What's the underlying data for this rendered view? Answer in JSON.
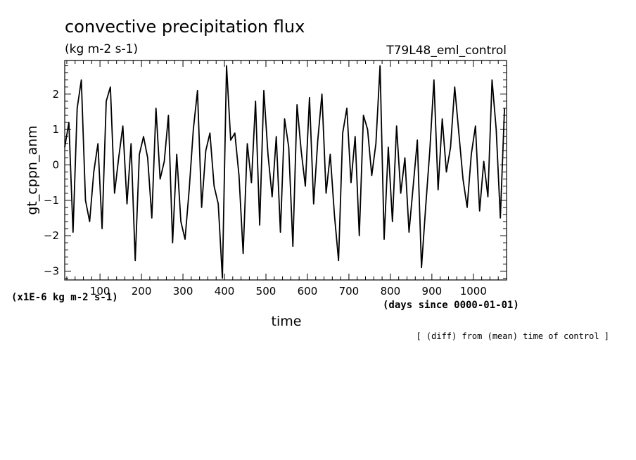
{
  "chart_data": {
    "type": "line",
    "title": "convective precipitation flux",
    "units": "(kg m-2 s-1)",
    "experiment": "T79L48_eml_control",
    "ylabel": "gt_cppn_anm",
    "xlabel": "time",
    "x_units": "(days since 0000-01-01)",
    "y_scale_note": "(x1E-6 kg m-2 s-1)",
    "footnote": "[ (diff) from (mean) time of control ]",
    "xlim": [
      15,
      1080
    ],
    "ylim": [
      -3.25,
      2.95
    ],
    "x_ticks": [
      100,
      200,
      300,
      400,
      500,
      600,
      700,
      800,
      900,
      1000
    ],
    "x_tick_labels": [
      "100",
      "200",
      "300",
      "400",
      "500",
      "600",
      "700",
      "800",
      "900",
      "1000"
    ],
    "y_ticks": [
      -3,
      -2,
      -1,
      0,
      1,
      2
    ],
    "y_tick_labels": [
      "−3",
      "−2",
      "−1",
      "0",
      "1",
      "2"
    ],
    "series": [
      {
        "x": [
          15,
          25,
          35,
          45,
          55,
          65,
          75,
          85,
          95,
          105,
          115,
          125,
          135,
          145,
          155,
          165,
          175,
          185,
          195,
          205,
          215,
          225,
          235,
          245,
          255,
          265,
          275,
          285,
          295,
          305,
          315,
          325,
          335,
          345,
          355,
          365,
          375,
          385,
          395,
          405,
          415,
          425,
          435,
          445,
          455,
          465,
          475,
          485,
          495,
          505,
          515,
          525,
          535,
          545,
          555,
          565,
          575,
          585,
          595,
          605,
          615,
          625,
          635,
          645,
          655,
          665,
          675,
          685,
          695,
          705,
          715,
          725,
          735,
          745,
          755,
          765,
          775,
          785,
          795,
          805,
          815,
          825,
          835,
          845,
          855,
          865,
          875,
          885,
          895,
          905,
          915,
          925,
          935,
          945,
          955,
          965,
          975,
          985,
          995,
          1005,
          1015,
          1025,
          1035,
          1045,
          1055,
          1065,
          1075
        ],
        "y": [
          0.5,
          1.2,
          -1.9,
          1.6,
          2.4,
          -1.0,
          -1.6,
          -0.2,
          0.6,
          -1.8,
          1.8,
          2.2,
          -0.8,
          0.2,
          1.1,
          -1.1,
          0.6,
          -2.7,
          0.3,
          0.8,
          0.2,
          -1.5,
          1.6,
          -0.4,
          0.1,
          1.4,
          -2.2,
          0.3,
          -1.6,
          -2.1,
          -0.7,
          1.0,
          2.1,
          -1.2,
          0.4,
          0.9,
          -0.6,
          -1.1,
          -3.2,
          2.8,
          0.7,
          0.9,
          -0.3,
          -2.5,
          0.6,
          -0.5,
          1.8,
          -1.7,
          2.1,
          0.3,
          -0.9,
          0.8,
          -1.9,
          1.3,
          0.5,
          -2.3,
          1.7,
          0.4,
          -0.6,
          1.9,
          -1.1,
          0.7,
          2.0,
          -0.8,
          0.3,
          -1.4,
          -2.7,
          0.9,
          1.6,
          -0.5,
          0.8,
          -2.0,
          1.4,
          1.0,
          -0.3,
          0.6,
          2.8,
          -2.1,
          0.5,
          -1.6,
          1.1,
          -0.8,
          0.2,
          -1.9,
          -0.6,
          0.7,
          -2.9,
          -1.2,
          0.4,
          2.4,
          -0.7,
          1.3,
          -0.2,
          0.5,
          2.2,
          0.9,
          -0.4,
          -1.2,
          0.3,
          1.1,
          -1.3,
          0.1,
          -0.9,
          2.4,
          1.0,
          -1.5,
          1.6
        ]
      }
    ]
  }
}
